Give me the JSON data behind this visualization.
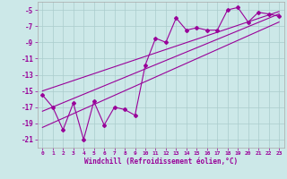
{
  "xlabel": "Windchill (Refroidissement éolien,°C)",
  "bg_color": "#cce8e8",
  "grid_color": "#aacccc",
  "line_color": "#990099",
  "xlim": [
    -0.5,
    23.5
  ],
  "ylim": [
    -22,
    -4
  ],
  "yticks": [
    -21,
    -19,
    -17,
    -15,
    -13,
    -11,
    -9,
    -7,
    -5
  ],
  "xticks": [
    0,
    1,
    2,
    3,
    4,
    5,
    6,
    7,
    8,
    9,
    10,
    11,
    12,
    13,
    14,
    15,
    16,
    17,
    18,
    19,
    20,
    21,
    22,
    23
  ],
  "data_x": [
    0,
    1,
    2,
    3,
    4,
    5,
    6,
    7,
    8,
    9,
    10,
    11,
    12,
    13,
    14,
    15,
    16,
    17,
    18,
    19,
    20,
    21,
    22,
    23
  ],
  "data_y": [
    -15.5,
    -17.0,
    -19.8,
    -16.5,
    -21.0,
    -16.3,
    -19.2,
    -17.0,
    -17.3,
    -18.0,
    -11.8,
    -8.5,
    -9.0,
    -6.0,
    -7.5,
    -7.2,
    -7.5,
    -7.5,
    -5.0,
    -4.7,
    -6.5,
    -5.3,
    -5.5,
    -5.8
  ],
  "line1_x": [
    0,
    23
  ],
  "line1_y": [
    -17.5,
    -5.5
  ],
  "line2_x": [
    0,
    23
  ],
  "line2_y": [
    -15.0,
    -5.2
  ],
  "line3_x": [
    0,
    23
  ],
  "line3_y": [
    -19.5,
    -6.5
  ]
}
